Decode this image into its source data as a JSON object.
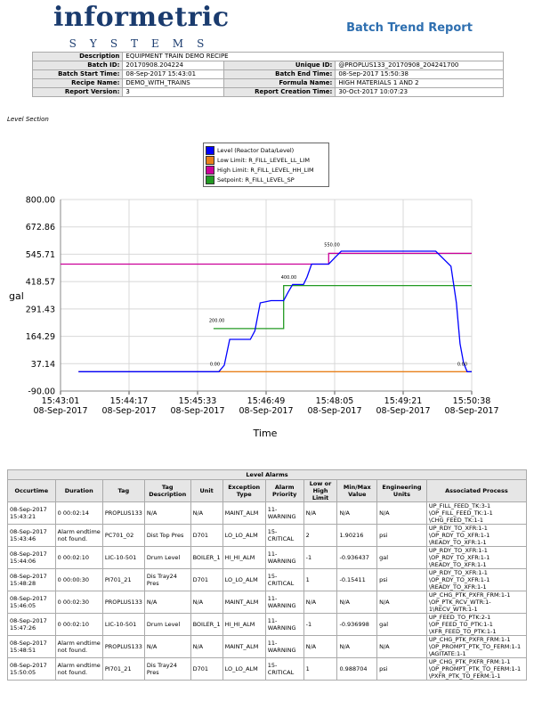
{
  "logo": {
    "main": "informetric",
    "sub": "SYSTEMS"
  },
  "report_title": "Batch Trend Report",
  "header": {
    "description_label": "Description",
    "description_value": "EQUIPMENT TRAIN DEMO RECIPE",
    "batch_id_label": "Batch ID:",
    "batch_id_value": "20170908.204224",
    "unique_id_label": "Unique ID:",
    "unique_id_value": "@PROPLUS133_20170908_204241700",
    "batch_start_label": "Batch Start Time:",
    "batch_start_value": "08-Sep-2017 15:43:01",
    "batch_end_label": "Batch End Time:",
    "batch_end_value": "08-Sep-2017 15:50:38",
    "recipe_name_label": "Recipe Name:",
    "recipe_name_value": "DEMO_WITH_TRAINS",
    "formula_name_label": "Formula Name:",
    "formula_name_value": "HIGH MATERIALS 1 AND 2",
    "report_version_label": "Report Version:",
    "report_version_value": "3",
    "creation_time_label": "Report Creation Time:",
    "creation_time_value": "30-Oct-2017 10:07:23"
  },
  "section_title": "Level Section",
  "legend": [
    {
      "label": "Level (Reactor Data/Level)",
      "color": "#0000ff"
    },
    {
      "label": "Low Limit: R_FILL_LEVEL_LL_LIM",
      "color": "#e8801a"
    },
    {
      "label": "High Limit: R_FILL_LEVEL_HH_LIM",
      "color": "#cc0099"
    },
    {
      "label": "Setpoint: R_FILL_LEVEL_SP",
      "color": "#239a23"
    }
  ],
  "chart_data": {
    "type": "line",
    "xlabel": "Time",
    "ylabel": "gal",
    "ylim": [
      -90.0,
      800.0
    ],
    "y_ticks": [
      "800.00",
      "672.86",
      "545.71",
      "418.57",
      "291.43",
      "164.29",
      "37.14",
      "-90.00"
    ],
    "x_ticks": [
      {
        "time": "15:43:01",
        "date": "08-Sep-2017"
      },
      {
        "time": "15:44:17",
        "date": "08-Sep-2017"
      },
      {
        "time": "15:45:33",
        "date": "08-Sep-2017"
      },
      {
        "time": "15:46:49",
        "date": "08-Sep-2017"
      },
      {
        "time": "15:48:05",
        "date": "08-Sep-2017"
      },
      {
        "time": "15:49:21",
        "date": "08-Sep-2017"
      },
      {
        "time": "15:50:38",
        "date": "08-Sep-2017"
      }
    ],
    "x_unit": "seconds from 15:43:01",
    "series": [
      {
        "name": "Level (Reactor Data/Level)",
        "color": "#0000ff",
        "x": [
          20,
          176,
          182,
          188,
          198,
          211,
          216,
          222,
          234,
          248,
          253,
          258,
          270,
          274,
          279,
          288,
          298,
          305,
          312,
          322,
          346,
          392,
          417,
          434,
          440,
          444,
          448,
          452,
          457
        ],
        "y": [
          0,
          0,
          30,
          150,
          150,
          150,
          190,
          320,
          330,
          330,
          370,
          405,
          405,
          440,
          500,
          500,
          500,
          530,
          560,
          560,
          560,
          560,
          560,
          490,
          320,
          130,
          40,
          0,
          0
        ]
      },
      {
        "name": "Low Limit: R_FILL_LEVEL_LL_LIM",
        "color": "#e8801a",
        "x": [
          20,
          457
        ],
        "y": [
          0,
          0
        ]
      },
      {
        "name": "High Limit: R_FILL_LEVEL_HH_LIM",
        "color": "#cc0099",
        "x": [
          0,
          298,
          298,
          457
        ],
        "y": [
          500,
          500,
          550,
          550
        ]
      },
      {
        "name": "Setpoint: R_FILL_LEVEL_SP",
        "color": "#239a23",
        "x": [
          170,
          248,
          248,
          457
        ],
        "y": [
          200,
          200,
          400,
          400
        ]
      }
    ],
    "annotations": [
      {
        "text": "200.00",
        "x": 171,
        "y": 215
      },
      {
        "text": "0.00",
        "x": 172,
        "y": 12
      },
      {
        "text": "400.00",
        "x": 251,
        "y": 415
      },
      {
        "text": "550.00",
        "x": 299,
        "y": 566
      },
      {
        "text": "0.00",
        "x": 447,
        "y": 12
      }
    ]
  },
  "alarms": {
    "caption": "Level Alarms",
    "columns": [
      "Occurtime",
      "Duration",
      "Tag",
      "Tag Description",
      "Unit",
      "Exception Type",
      "Alarm Priority",
      "Low or High Limit",
      "Min/Max Value",
      "Engineering Units",
      "Associated Process"
    ],
    "rows": [
      [
        "08-Sep-2017 15:43:21",
        "0 00:02:14",
        "PROPLUS133",
        "N/A",
        "N/A",
        "MAINT_ALM",
        "11-WARNING",
        "N/A",
        "N/A",
        "N/A",
        "UP_FILL_FEED_TK:3-1 \\OP_FILL_FEED_TK:1-1 \\CHG_FEED_TK:1-1"
      ],
      [
        "08-Sep-2017 15:43:46",
        "Alarm endtime not found.",
        "PC701_02",
        "Dist Top Pres",
        "D701",
        "LO_LO_ALM",
        "15-CRITICAL",
        "2",
        "1.90216",
        "psi",
        "UP_RDY_TO_XFR:1-1 \\OP_RDY_TO_XFR:1-1 \\READY_TO_XFR:1-1"
      ],
      [
        "08-Sep-2017 15:44:06",
        "0 00:02:10",
        "LIC-10-501",
        "Drum Level",
        "BOILER_1",
        "HI_HI_ALM",
        "11-WARNING",
        "-1",
        "-0.936437",
        "gal",
        "UP_RDY_TO_XFR:1-1 \\OP_RDY_TO_XFR:1-1 \\READY_TO_XFR:1-1"
      ],
      [
        "08-Sep-2017 15:48:28",
        "0 00:00:30",
        "PI701_21",
        "Dis Tray24 Pres",
        "D701",
        "LO_LO_ALM",
        "15-CRITICAL",
        "1",
        "-0.15411",
        "psi",
        "UP_RDY_TO_XFR:1-1 \\OP_RDY_TO_XFR:1-1 \\READY_TO_XFR:1-1"
      ],
      [
        "08-Sep-2017 15:46:05",
        "0 00:02:30",
        "PROPLUS133",
        "N/A",
        "N/A",
        "MAINT_ALM",
        "11-WARNING",
        "N/A",
        "N/A",
        "N/A",
        "UP_CHG_PTK_PXFR_FRM:1-1 \\OP_PTK_RCV_WTR:1-1\\RECV_WTR:1-1"
      ],
      [
        "08-Sep-2017 15:47:26",
        "0 00:02:10",
        "LIC-10-501",
        "Drum Level",
        "BOILER_1",
        "HI_HI_ALM",
        "11-WARNING",
        "-1",
        "-0.936998",
        "gal",
        "UP_FEED_TO_PTK:2-1 \\OP_FEED_TO_PTK:1-1 \\XFR_FEED_TO_PTK:1-1"
      ],
      [
        "08-Sep-2017 15:48:51",
        "Alarm endtime not found.",
        "PROPLUS133",
        "N/A",
        "N/A",
        "MAINT_ALM",
        "11-WARNING",
        "N/A",
        "N/A",
        "N/A",
        "UP_CHG_PTK_PXFR_FRM:1-1 \\OP_PROMPT_PTK_TO_FERM:1-1 \\AGITATE:1-1"
      ],
      [
        "08-Sep-2017 15:50:05",
        "Alarm endtime not found.",
        "PI701_21",
        "Dis Tray24 Pres",
        "D701",
        "LO_LO_ALM",
        "15-CRITICAL",
        "1",
        "0.988704",
        "psi",
        "UP_CHG_PTK_PXFR_FRM:1-1 \\OP_PROMPT_PTK_TO_FERM:1-1 \\PXFR_PTK_TO_FERM:1-1"
      ]
    ]
  }
}
